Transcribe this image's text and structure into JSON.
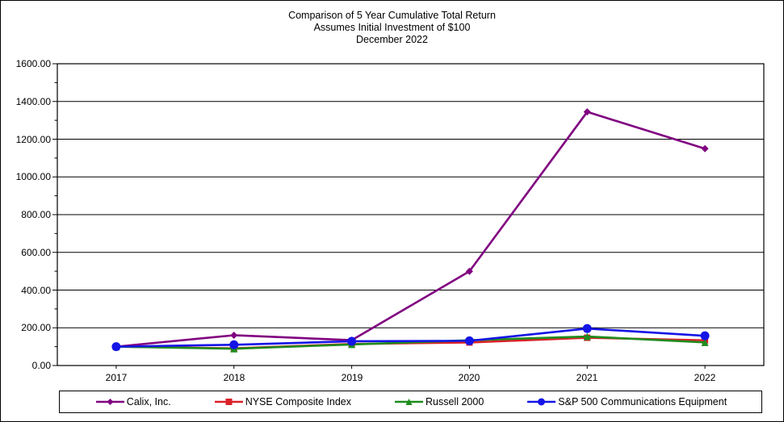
{
  "chart_data": {
    "type": "line",
    "title_lines": [
      "Comparison of 5 Year Cumulative Total Return",
      "Assumes Initial Investment of $100",
      "December 2022"
    ],
    "categories": [
      "2017",
      "2018",
      "2019",
      "2020",
      "2021",
      "2022"
    ],
    "y_tick_labels": [
      "1600.00",
      "1400.00",
      "1200.00",
      "1000.00",
      "800.00",
      "600.00",
      "400.00",
      "200.00",
      "0.00"
    ],
    "ylim": [
      0,
      1600
    ],
    "y_major_step": 200,
    "y_minor_step": 100,
    "grid": "horizontal-major-only",
    "legend_position": "bottom",
    "xlabel": "",
    "ylabel": "",
    "series": [
      {
        "name": "Calix, Inc.",
        "color": "#800080",
        "marker": "diamond",
        "values": [
          100.0,
          160.5,
          134.45,
          499.33,
          1344.71,
          1149.58
        ]
      },
      {
        "name": "NYSE Composite Index",
        "color": "#DC2028",
        "marker": "square",
        "values": [
          100.0,
          91.12,
          114.26,
          122.1,
          147.33,
          133.67
        ]
      },
      {
        "name": "Russell 2000",
        "color": "#1E8C1E",
        "marker": "triangle",
        "values": [
          100.0,
          88.99,
          111.7,
          134.0,
          153.85,
          122.41
        ]
      },
      {
        "name": "S&P 500 Communications Equipment",
        "color": "#1414E6",
        "marker": "circle",
        "values": [
          100.0,
          110.0,
          128.5,
          131.0,
          196.0,
          157.5
        ]
      }
    ]
  }
}
